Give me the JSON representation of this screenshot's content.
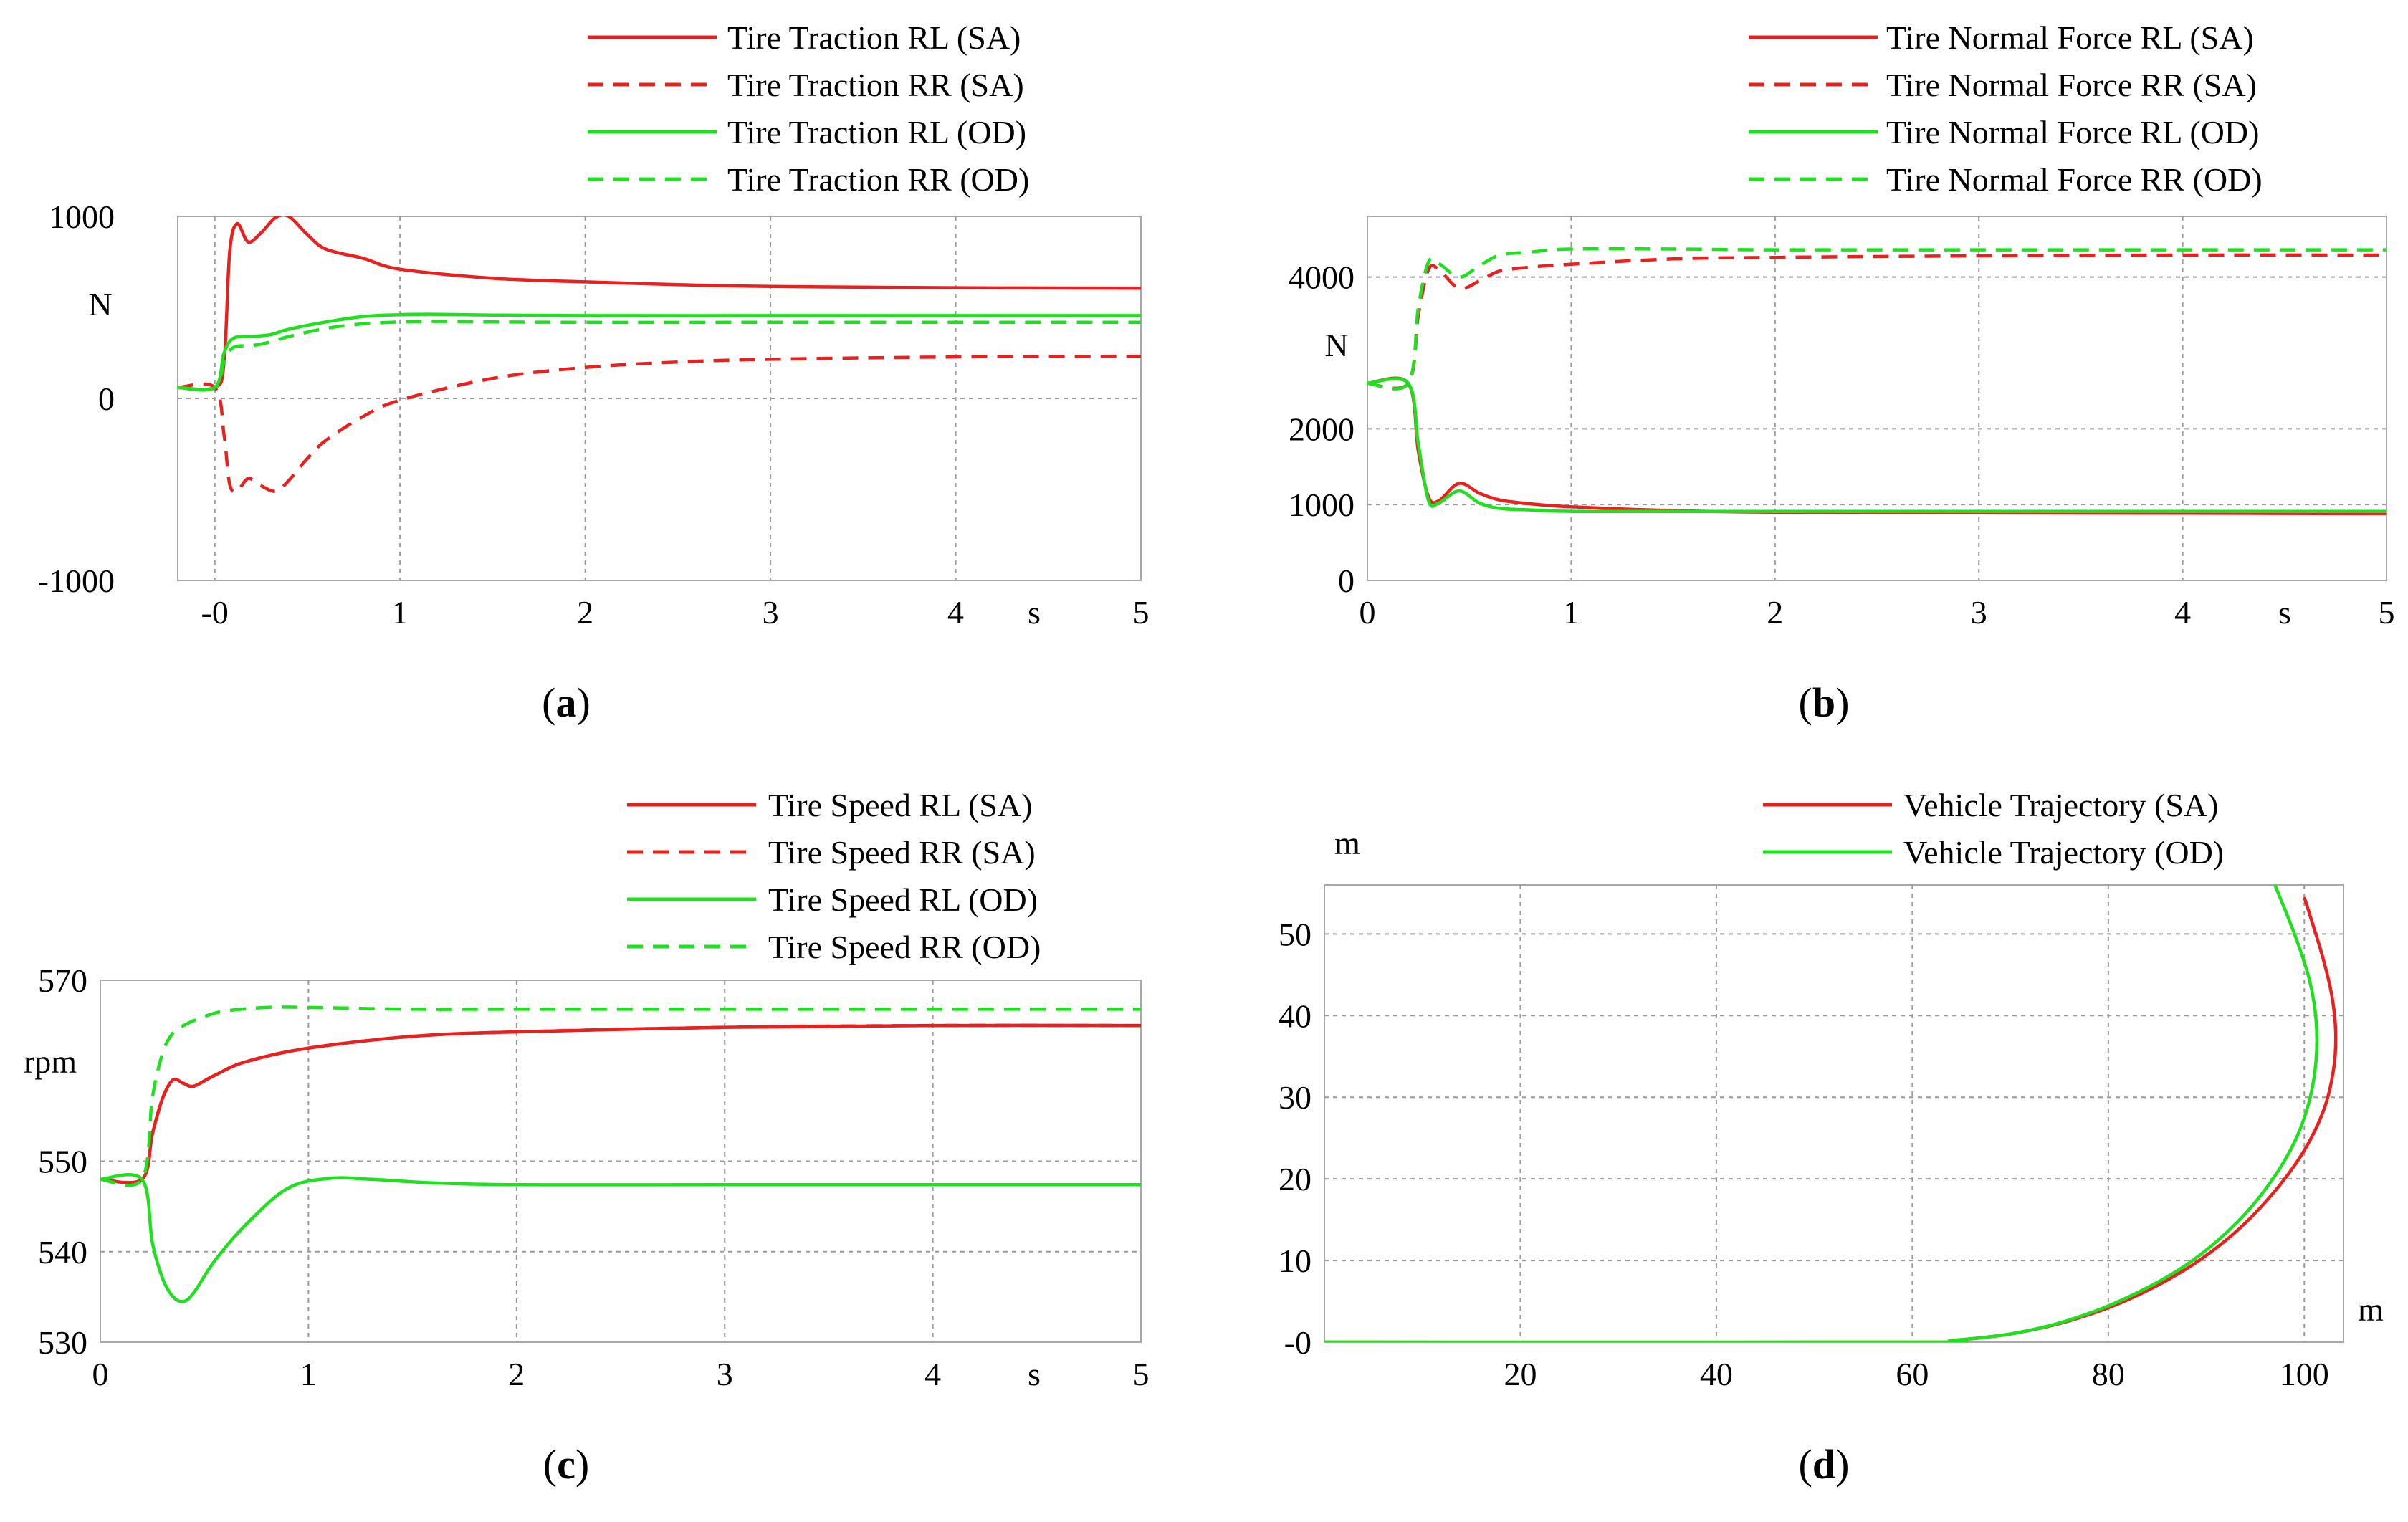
{
  "colors": {
    "sa": "#e8201e",
    "od": "#1fe01f",
    "grid": "#9a9a9a",
    "axis": "#000000",
    "frame": "#a8a8a8"
  },
  "chart_data": [
    {
      "type": "line",
      "panel": "(a)",
      "panel_letter": "a",
      "xlim": [
        -0.2,
        5
      ],
      "ylim": [
        -1000,
        1000
      ],
      "xticks": [
        0,
        1,
        2,
        3,
        4,
        5
      ],
      "xtick_labels": [
        "-0",
        "1",
        "2",
        "3",
        "4",
        "5"
      ],
      "yticks": [
        1000,
        0,
        -1000
      ],
      "ytick_labels": [
        "1000",
        "0",
        "-1000"
      ],
      "ylabel": "N",
      "xunit": "s",
      "grid": true,
      "legend": "top-right",
      "series": [
        {
          "name": "Tire Traction RL (SA)",
          "color": "sa",
          "dash": false,
          "x": [
            -0.2,
            0.0,
            0.05,
            0.08,
            0.12,
            0.18,
            0.25,
            0.33,
            0.4,
            0.5,
            0.6,
            0.8,
            1.0,
            1.5,
            2.0,
            2.5,
            3.0,
            4.0,
            5.0
          ],
          "y": [
            60,
            60,
            200,
            800,
            960,
            860,
            910,
            995,
            1000,
            900,
            820,
            770,
            710,
            660,
            640,
            625,
            615,
            608,
            605
          ]
        },
        {
          "name": "Tire Traction RR (SA)",
          "color": "sa",
          "dash": true,
          "x": [
            -0.2,
            0.0,
            0.05,
            0.08,
            0.12,
            0.18,
            0.25,
            0.33,
            0.4,
            0.5,
            0.6,
            0.8,
            1.0,
            1.5,
            2.0,
            2.5,
            3.0,
            4.0,
            5.0
          ],
          "y": [
            60,
            60,
            -200,
            -470,
            -510,
            -440,
            -480,
            -510,
            -450,
            -330,
            -230,
            -100,
            -10,
            110,
            170,
            200,
            215,
            228,
            232
          ]
        },
        {
          "name": "Tire Traction RL (OD)",
          "color": "od",
          "dash": false,
          "x": [
            -0.2,
            0.0,
            0.05,
            0.1,
            0.2,
            0.3,
            0.4,
            0.6,
            0.8,
            1.0,
            1.2,
            1.5,
            2.0,
            3.0,
            4.0,
            5.0
          ],
          "y": [
            60,
            60,
            250,
            330,
            340,
            350,
            380,
            420,
            450,
            460,
            462,
            458,
            455,
            455,
            455,
            455
          ]
        },
        {
          "name": "Tire Traction RR (OD)",
          "color": "od",
          "dash": true,
          "x": [
            -0.2,
            0.0,
            0.05,
            0.1,
            0.2,
            0.3,
            0.4,
            0.6,
            0.8,
            1.0,
            1.2,
            1.5,
            2.0,
            3.0,
            4.0,
            5.0
          ],
          "y": [
            60,
            60,
            200,
            280,
            290,
            310,
            340,
            385,
            410,
            420,
            423,
            420,
            418,
            418,
            418,
            418
          ]
        }
      ]
    },
    {
      "type": "line",
      "panel": "(b)",
      "panel_letter": "b",
      "xlim": [
        0,
        5
      ],
      "ylim": [
        0,
        4800
      ],
      "xticks": [
        0,
        1,
        2,
        3,
        4,
        5
      ],
      "xtick_labels": [
        "0",
        "1",
        "2",
        "3",
        "4",
        "5"
      ],
      "yticks": [
        4000,
        2000,
        1000,
        0
      ],
      "ytick_labels": [
        "4000",
        "2000",
        "1000",
        "0"
      ],
      "ylabel": "N",
      "xunit": "s",
      "grid": true,
      "legend": "top-right",
      "series": [
        {
          "name": "Tire Normal Force RL (SA)",
          "color": "sa",
          "dash": false,
          "x": [
            0,
            0.2,
            0.25,
            0.3,
            0.35,
            0.45,
            0.55,
            0.65,
            0.8,
            1.0,
            1.5,
            2.0,
            3.0,
            4.0,
            5.0
          ],
          "y": [
            2600,
            2600,
            1700,
            1100,
            1050,
            1280,
            1150,
            1060,
            1010,
            970,
            920,
            900,
            890,
            885,
            880
          ]
        },
        {
          "name": "Tire Normal Force RR (SA)",
          "color": "sa",
          "dash": true,
          "x": [
            0,
            0.2,
            0.25,
            0.3,
            0.35,
            0.45,
            0.55,
            0.65,
            0.8,
            1.0,
            1.5,
            2.0,
            3.0,
            4.0,
            5.0
          ],
          "y": [
            2600,
            2600,
            3500,
            4100,
            4100,
            3850,
            3950,
            4080,
            4130,
            4170,
            4240,
            4260,
            4280,
            4290,
            4290
          ]
        },
        {
          "name": "Tire Normal Force RL (OD)",
          "color": "od",
          "dash": false,
          "x": [
            0,
            0.2,
            0.25,
            0.3,
            0.35,
            0.45,
            0.55,
            0.65,
            0.8,
            1.0,
            1.5,
            2.0,
            3.0,
            4.0,
            5.0
          ],
          "y": [
            2600,
            2600,
            1800,
            1050,
            1020,
            1180,
            1020,
            950,
            930,
            910,
            910,
            910,
            910,
            910,
            910
          ]
        },
        {
          "name": "Tire Normal Force RR (OD)",
          "color": "od",
          "dash": true,
          "x": [
            0,
            0.2,
            0.25,
            0.3,
            0.35,
            0.45,
            0.55,
            0.65,
            0.8,
            1.0,
            1.5,
            2.0,
            3.0,
            4.0,
            5.0
          ],
          "y": [
            2600,
            2600,
            3600,
            4200,
            4180,
            4000,
            4150,
            4290,
            4330,
            4370,
            4370,
            4360,
            4360,
            4360,
            4360
          ]
        }
      ]
    },
    {
      "type": "line",
      "panel": "(c)",
      "panel_letter": "c",
      "xlim": [
        0,
        5
      ],
      "ylim": [
        530,
        570
      ],
      "xticks": [
        0,
        1,
        2,
        3,
        4,
        5
      ],
      "xtick_labels": [
        "0",
        "1",
        "2",
        "3",
        "4",
        "5"
      ],
      "yticks": [
        570,
        550,
        540,
        530
      ],
      "ytick_labels": [
        "570",
        "550",
        "540",
        "530"
      ],
      "ylabel": "rpm",
      "xunit": "s",
      "grid": true,
      "legend": "top-right",
      "series": [
        {
          "name": "Tire Speed RL (SA)",
          "color": "sa",
          "dash": false,
          "x": [
            0,
            0.2,
            0.25,
            0.3,
            0.35,
            0.4,
            0.45,
            0.55,
            0.7,
            1.0,
            1.5,
            2.0,
            3.0,
            4.0,
            5.0
          ],
          "y": [
            548,
            548,
            553,
            557,
            559,
            558.6,
            558.3,
            559.5,
            561,
            562.5,
            563.8,
            564.3,
            564.8,
            565,
            565
          ]
        },
        {
          "name": "Tire Speed RR (SA)",
          "color": "sa",
          "dash": true,
          "x": [
            0,
            0.2,
            0.25,
            0.3,
            0.35,
            0.4,
            0.45,
            0.55,
            0.7,
            1.0,
            1.5,
            2.0,
            3.0,
            4.0,
            5.0
          ],
          "y": [
            548,
            548,
            553,
            557,
            559,
            558.6,
            558.3,
            559.5,
            561,
            562.5,
            563.8,
            564.3,
            564.8,
            565,
            565
          ]
        },
        {
          "name": "Tire Speed RL (OD)",
          "color": "od",
          "dash": false,
          "x": [
            0,
            0.2,
            0.25,
            0.3,
            0.35,
            0.4,
            0.45,
            0.55,
            0.7,
            0.9,
            1.1,
            1.3,
            1.6,
            2.0,
            3.0,
            4.0,
            5.0
          ],
          "y": [
            548,
            548,
            541,
            537,
            535,
            534.5,
            535.5,
            539,
            543,
            547,
            548.1,
            548,
            547.6,
            547.4,
            547.4,
            547.4,
            547.4
          ]
        },
        {
          "name": "Tire Speed RR (OD)",
          "color": "od",
          "dash": true,
          "x": [
            0,
            0.2,
            0.25,
            0.3,
            0.35,
            0.4,
            0.5,
            0.6,
            0.8,
            1.0,
            1.5,
            2.0,
            3.0,
            4.0,
            5.0
          ],
          "y": [
            548,
            548,
            557,
            562,
            564.2,
            565,
            566,
            566.6,
            567,
            567,
            566.8,
            566.8,
            566.8,
            566.8,
            566.8
          ]
        }
      ]
    },
    {
      "type": "line",
      "panel": "(d)",
      "panel_letter": "d",
      "xlim": [
        0,
        104
      ],
      "ylim": [
        0,
        56
      ],
      "xticks": [
        20,
        40,
        60,
        80,
        100
      ],
      "xtick_labels": [
        "20",
        "40",
        "60",
        "80",
        "100"
      ],
      "yticks": [
        50,
        40,
        30,
        20,
        10,
        0
      ],
      "ytick_labels": [
        "50",
        "40",
        "30",
        "20",
        "10",
        "-0"
      ],
      "ylabel": "m",
      "xunit": "m",
      "grid": true,
      "legend": "top-right",
      "series": [
        {
          "name": "Vehicle Trajectory (SA)",
          "color": "sa",
          "dash": false,
          "x": [
            0,
            60,
            64,
            70,
            76,
            82,
            88,
            93,
            97,
            100,
            102,
            103,
            103.2,
            102.8,
            101.8,
            100
          ],
          "y": [
            0,
            0,
            0.2,
            1.0,
            2.6,
            5.2,
            9.0,
            13.5,
            18.5,
            23.5,
            28.5,
            33.5,
            38.0,
            42.5,
            47.5,
            54.5
          ]
        },
        {
          "name": "Vehicle Trajectory (OD)",
          "color": "od",
          "dash": false,
          "x": [
            0,
            60,
            64,
            70,
            76,
            82,
            88,
            93,
            96.5,
            99,
            100.5,
            101.2,
            101.2,
            100.5,
            99,
            97
          ],
          "y": [
            0,
            0,
            0.2,
            1.0,
            2.7,
            5.5,
            9.5,
            14.5,
            19.5,
            24.5,
            29.5,
            34.5,
            39.5,
            44.5,
            50,
            56
          ]
        }
      ]
    }
  ]
}
